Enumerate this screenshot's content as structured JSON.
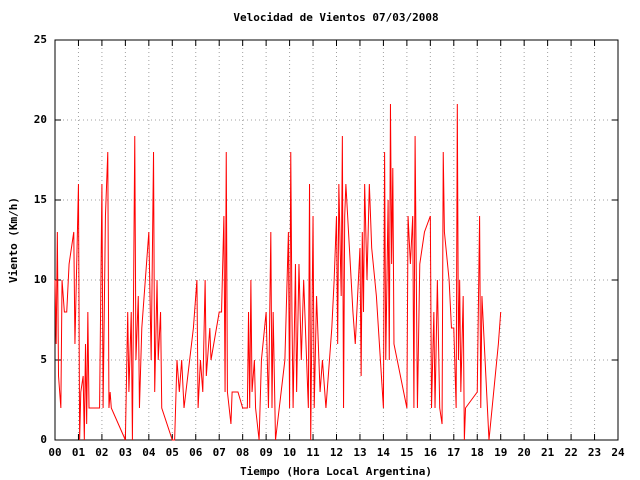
{
  "chart_data": {
    "type": "line",
    "title": "Velocidad de Vientos 07/03/2008",
    "xlabel": "Tiempo (Hora Local Argentina)",
    "ylabel": "Viento (Km/h)",
    "color": "#ff0000",
    "grid": true,
    "xlim": [
      0,
      24
    ],
    "ylim": [
      0,
      25
    ],
    "xticks": [
      {
        "value": 0,
        "label": "00"
      },
      {
        "value": 1,
        "label": "01"
      },
      {
        "value": 2,
        "label": "02"
      },
      {
        "value": 3,
        "label": "03"
      },
      {
        "value": 4,
        "label": "04"
      },
      {
        "value": 5,
        "label": "05"
      },
      {
        "value": 6,
        "label": "06"
      },
      {
        "value": 7,
        "label": "07"
      },
      {
        "value": 8,
        "label": "08"
      },
      {
        "value": 9,
        "label": "09"
      },
      {
        "value": 10,
        "label": "10"
      },
      {
        "value": 11,
        "label": "11"
      },
      {
        "value": 12,
        "label": "12"
      },
      {
        "value": 13,
        "label": "13"
      },
      {
        "value": 14,
        "label": "14"
      },
      {
        "value": 15,
        "label": "15"
      },
      {
        "value": 16,
        "label": "16"
      },
      {
        "value": 17,
        "label": "17"
      },
      {
        "value": 18,
        "label": "18"
      },
      {
        "value": 19,
        "label": "19"
      },
      {
        "value": 20,
        "label": "20"
      },
      {
        "value": 21,
        "label": "21"
      },
      {
        "value": 22,
        "label": "22"
      },
      {
        "value": 23,
        "label": "23"
      },
      {
        "value": 24,
        "label": "24"
      }
    ],
    "yticks": [
      0,
      5,
      10,
      15,
      20,
      25
    ],
    "x": [
      0.0,
      0.05,
      0.1,
      0.15,
      0.25,
      0.3,
      0.4,
      0.5,
      0.6,
      0.8,
      0.85,
      1.0,
      1.05,
      1.1,
      1.2,
      1.25,
      1.3,
      1.35,
      1.4,
      1.45,
      1.5,
      1.9,
      2.0,
      2.05,
      2.15,
      2.25,
      2.3,
      2.35,
      2.4,
      3.0,
      3.1,
      3.15,
      3.25,
      3.3,
      3.4,
      3.45,
      3.55,
      3.6,
      3.7,
      3.8,
      4.0,
      4.1,
      4.2,
      4.25,
      4.35,
      4.4,
      4.5,
      4.55,
      5.0,
      5.1,
      5.2,
      5.3,
      5.4,
      5.5,
      5.9,
      6.05,
      6.1,
      6.2,
      6.3,
      6.4,
      6.45,
      6.6,
      6.65,
      7.0,
      7.1,
      7.2,
      7.25,
      7.3,
      7.35,
      7.5,
      7.55,
      7.8,
      8.0,
      8.2,
      8.25,
      8.3,
      8.35,
      8.4,
      8.5,
      8.55,
      8.7,
      8.8,
      9.0,
      9.1,
      9.2,
      9.25,
      9.3,
      9.4,
      9.8,
      9.95,
      10.0,
      10.05,
      10.1,
      10.15,
      10.25,
      10.3,
      10.4,
      10.5,
      10.6,
      10.7,
      10.8,
      10.85,
      10.9,
      11.0,
      11.05,
      11.15,
      11.3,
      11.4,
      11.55,
      11.8,
      11.9,
      12.0,
      12.05,
      12.1,
      12.2,
      12.25,
      12.3,
      12.35,
      12.4,
      12.55,
      12.7,
      12.8,
      13.0,
      13.05,
      13.1,
      13.15,
      13.2,
      13.3,
      13.4,
      13.5,
      13.7,
      14.0,
      14.05,
      14.1,
      14.2,
      14.25,
      14.3,
      14.35,
      14.4,
      14.45,
      15.0,
      15.05,
      15.15,
      15.25,
      15.3,
      15.35,
      15.45,
      15.55,
      15.75,
      16.0,
      16.05,
      16.15,
      16.2,
      16.3,
      16.4,
      16.5,
      16.55,
      16.6,
      16.8,
      16.9,
      17.0,
      17.1,
      17.15,
      17.2,
      17.25,
      17.3,
      17.4,
      17.45,
      17.5,
      18.0,
      18.1,
      18.15,
      18.2,
      18.5,
      18.9,
      19.0
    ],
    "values": [
      10,
      6,
      13,
      4,
      2,
      10,
      8,
      8,
      11,
      13,
      6,
      16,
      0,
      3,
      4,
      0,
      6,
      1,
      8,
      2,
      2,
      2,
      16,
      2,
      14,
      18,
      2,
      3,
      2,
      0,
      8,
      3,
      8,
      0,
      19,
      5,
      9,
      2,
      7,
      9,
      13,
      5,
      18,
      3,
      10,
      5,
      8,
      2,
      0,
      0,
      5,
      3,
      5,
      2,
      7,
      10,
      2,
      5,
      3,
      10,
      4,
      7,
      5,
      8,
      8,
      14,
      3,
      18,
      3,
      1,
      3,
      3,
      2,
      2,
      8,
      2,
      10,
      3,
      5,
      2,
      0,
      5,
      8,
      2,
      13,
      2,
      8,
      0,
      5,
      13,
      2,
      18,
      8,
      2,
      11,
      3,
      11,
      5,
      10,
      6,
      2,
      16,
      0,
      14,
      2,
      9,
      3,
      5,
      2,
      7,
      10,
      14,
      6,
      16,
      9,
      19,
      2,
      14,
      16,
      12,
      8,
      6,
      12,
      4,
      13,
      8,
      16,
      10,
      16,
      12,
      9,
      2,
      18,
      5,
      15,
      5,
      21,
      11,
      17,
      6,
      2,
      14,
      11,
      14,
      2,
      19,
      2,
      11,
      13,
      14,
      2,
      8,
      2,
      10,
      2,
      1,
      18,
      13,
      10,
      7,
      7,
      2,
      21,
      5,
      10,
      3,
      9,
      0,
      2,
      3,
      14,
      2,
      9,
      0,
      6,
      8
    ]
  }
}
